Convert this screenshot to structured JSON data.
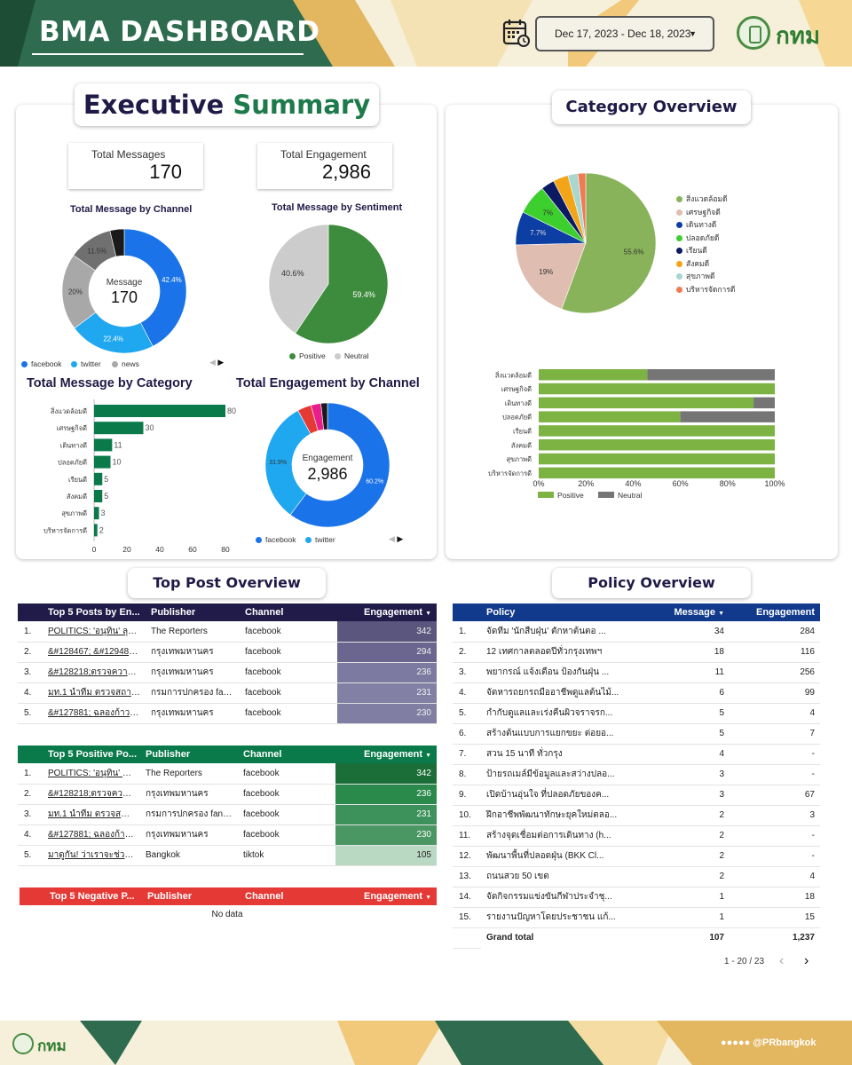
{
  "header": {
    "title": "BMA DASHBOARD",
    "date_range": "Dec 17, 2023 - Dec 18, 2023",
    "logo_text": "กทม"
  },
  "executive": {
    "title_part1": "Executive",
    "title_part2": "Summary",
    "total_messages_label": "Total Messages",
    "total_messages_value": "170",
    "total_engagement_label": "Total Engagement",
    "total_engagement_value": "2,986"
  },
  "channel_donut": {
    "title": "Total Message by Channel",
    "center_label": "Message",
    "center_value": "170",
    "legend": [
      "facebook",
      "twitter",
      "news"
    ]
  },
  "sentiment_pie": {
    "title": "Total Message by Sentiment",
    "legend": [
      "Positive",
      "Neutral"
    ]
  },
  "category_bar": {
    "title": "Total Message by Category"
  },
  "engagement_donut": {
    "title": "Total Engagement by Channel",
    "center_label": "Engagement",
    "center_value": "2,986",
    "legend": [
      "facebook",
      "twitter"
    ]
  },
  "category_overview": {
    "title": "Category Overview",
    "legend": [
      "สิ่งแวดล้อมดี",
      "เศรษฐกิจดี",
      "เดินทางดี",
      "ปลอดภัยดี",
      "เรียนดี",
      "สังคมดี",
      "สุขภาพดี",
      "บริหารจัดการดี"
    ],
    "stack_legend": [
      "Positive",
      "Neutral"
    ]
  },
  "chart_data": [
    {
      "type": "pie",
      "title": "Total Message by Channel",
      "categories": [
        "facebook",
        "twitter",
        "news",
        "other1",
        "other2"
      ],
      "values": [
        42.4,
        22.4,
        20,
        11.5,
        3.7
      ],
      "value_labels": [
        "42.4%",
        "22.4%",
        "20%",
        "11.5%",
        ""
      ],
      "colors": [
        "#1a73e8",
        "#1fa7f0",
        "#a8a8a8",
        "#707070",
        "#1a1a1a"
      ],
      "extra_colors": [
        "#e53935"
      ]
    },
    {
      "type": "pie",
      "title": "Total Message by Sentiment",
      "categories": [
        "Positive",
        "Neutral"
      ],
      "values": [
        59.4,
        40.6
      ],
      "value_labels": [
        "59.4%",
        "40.6%"
      ],
      "colors": [
        "#3d8b3d",
        "#cccccc"
      ]
    },
    {
      "type": "bar",
      "title": "Total Message by Category",
      "categories": [
        "สิ่งแวดล้อมดี",
        "เศรษฐกิจดี",
        "เดินทางดี",
        "ปลอดภัยดี",
        "เรียนดี",
        "สังคมดี",
        "สุขภาพดี",
        "บริหารจัดการดี"
      ],
      "values": [
        80,
        30,
        11,
        10,
        5,
        5,
        3,
        2
      ],
      "xlim": [
        0,
        80
      ],
      "xticks": [
        0,
        20,
        40,
        60,
        80
      ],
      "color": "#0b7a4b"
    },
    {
      "type": "pie",
      "title": "Total Engagement by Channel",
      "categories": [
        "facebook",
        "twitter",
        "other1",
        "other2",
        "other3"
      ],
      "values": [
        60.2,
        31.9,
        3.6,
        2.6,
        1.7
      ],
      "value_labels": [
        "60.2%",
        "31.9%",
        "",
        "",
        ""
      ],
      "colors": [
        "#1a73e8",
        "#1fa7f0",
        "#e53935",
        "#e91e8c",
        "#1a1a1a"
      ]
    },
    {
      "type": "pie",
      "title": "Category Overview",
      "categories": [
        "สิ่งแวดล้อมดี",
        "เศรษฐกิจดี",
        "เดินทางดี",
        "ปลอดภัยดี",
        "เรียนดี",
        "สังคมดี",
        "สุขภาพดี",
        "บริหารจัดการดี"
      ],
      "values": [
        55.6,
        19,
        7.7,
        7,
        3.1,
        3.5,
        2.3,
        1.8
      ],
      "value_labels": [
        "55.6%",
        "19%",
        "7.7%",
        "7%",
        "",
        "",
        "",
        ""
      ],
      "colors": [
        "#88b35a",
        "#dfbdb1",
        "#0d3ea3",
        "#3ccf2e",
        "#0b1a63",
        "#f2a516",
        "#a9d6cf",
        "#f07b52"
      ]
    },
    {
      "type": "bar",
      "stacked": true,
      "title": "Category Overview",
      "categories": [
        "สิ่งแวดล้อมดี",
        "เศรษฐกิจดี",
        "เดินทางดี",
        "ปลอดภัยดี",
        "เรียนดี",
        "สังคมดี",
        "สุขภาพดี",
        "บริหารจัดการดี"
      ],
      "series": [
        {
          "name": "Positive",
          "values": [
            46,
            100,
            91,
            60,
            100,
            100,
            100,
            100
          ],
          "color": "#7cb342"
        },
        {
          "name": "Neutral",
          "values": [
            54,
            0,
            9,
            40,
            0,
            0,
            0,
            0
          ],
          "color": "#757575"
        }
      ],
      "xlim": [
        0,
        100
      ],
      "xticks": [
        "0%",
        "20%",
        "40%",
        "60%",
        "80%",
        "100%"
      ]
    }
  ],
  "top_posts": {
    "title": "Top Post Overview",
    "headers": [
      "Top 5 Posts by En...",
      "Publisher",
      "Channel",
      "Engagement"
    ],
    "rows": [
      {
        "idx": "1.",
        "post": "POLITICS: 'อนุทิน' ลุยตรว...",
        "publisher": "The Reporters",
        "channel": "facebook",
        "engagement": "342"
      },
      {
        "idx": "2.",
        "post": "&#128467; &#129489...",
        "publisher": "กรุงเทพมหานคร",
        "channel": "facebook",
        "engagement": "294"
      },
      {
        "idx": "3.",
        "post": "&#128218;ตรวจความพร้...",
        "publisher": "กรุงเทพมหานคร",
        "channel": "facebook",
        "engagement": "236"
      },
      {
        "idx": "4.",
        "post": "มท.1 นำทีม ตรวจสถานพร...",
        "publisher": "กรมการปกครอง fanpa...",
        "channel": "facebook",
        "engagement": "231"
      },
      {
        "idx": "5.",
        "post": "&#127881; ฉลองก้าวสู่...",
        "publisher": "กรุงเทพมหานคร",
        "channel": "facebook",
        "engagement": "230"
      }
    ]
  },
  "positive_posts": {
    "headers": [
      "Top 5 Positive Po...",
      "Publisher",
      "Channel",
      "Engagement"
    ],
    "rows": [
      {
        "idx": "1.",
        "post": "POLITICS: 'อนุทิน' ลุยตร...",
        "publisher": "The Reporters",
        "channel": "facebook",
        "engagement": "342"
      },
      {
        "idx": "2.",
        "post": "&#128218;ตรวจความ...",
        "publisher": "กรุงเทพมหานคร",
        "channel": "facebook",
        "engagement": "236"
      },
      {
        "idx": "3.",
        "post": "มท.1 นำทีม ตรวจสถานพ...",
        "publisher": "กรมการปกครอง fanpage",
        "channel": "facebook",
        "engagement": "231"
      },
      {
        "idx": "4.",
        "post": "&#127881; ฉลองก้าวสู่...",
        "publisher": "กรุงเทพมหานคร",
        "channel": "facebook",
        "engagement": "230"
      },
      {
        "idx": "5.",
        "post": "มาดูกัน! ว่าเราจะช่วยกันแ...",
        "publisher": "Bangkok",
        "channel": "tiktok",
        "engagement": "105"
      }
    ]
  },
  "negative_posts": {
    "headers": [
      "Top 5 Negative P...",
      "Publisher",
      "Channel",
      "Engagement"
    ],
    "empty_text": "No data"
  },
  "policy": {
    "title": "Policy Overview",
    "headers": [
      "Policy",
      "Message",
      "Engagement"
    ],
    "rows": [
      {
        "idx": "1.",
        "policy": "จัดทีม 'นักสืบฝุ่น' ตักหาต้นตอ ...",
        "message": "34",
        "engagement": "284"
      },
      {
        "idx": "2.",
        "policy": "12 เทศกาลตลอดปีทั่วกรุงเทพฯ",
        "message": "18",
        "engagement": "116"
      },
      {
        "idx": "3.",
        "policy": "พยากรณ์ แจ้งเตือน ป้องกันฝุ่น ...",
        "message": "11",
        "engagement": "256"
      },
      {
        "idx": "4.",
        "policy": "จัดหารถยกรถมืออาชีพดูแลต้นไม้...",
        "message": "6",
        "engagement": "99"
      },
      {
        "idx": "5.",
        "policy": "กำกับดูแลและเร่งคืนผิวจราจรก...",
        "message": "5",
        "engagement": "4"
      },
      {
        "idx": "6.",
        "policy": "สร้างต้นแบบการแยกขยะ ต่อยอ...",
        "message": "5",
        "engagement": "7"
      },
      {
        "idx": "7.",
        "policy": "สวน 15 นาที ทั่วกรุง",
        "message": "4",
        "engagement": "-"
      },
      {
        "idx": "8.",
        "policy": "ป้ายรถเมล์มีข้อมูลและสว่างปลอ...",
        "message": "3",
        "engagement": "-"
      },
      {
        "idx": "9.",
        "policy": "เปิดบ้านอุ่นใจ ที่ปลอดภัยของค...",
        "message": "3",
        "engagement": "67"
      },
      {
        "idx": "10.",
        "policy": "ฝึกอาชีพพัฒนาทักษะยุคใหม่ตลอ...",
        "message": "2",
        "engagement": "3"
      },
      {
        "idx": "11.",
        "policy": "สร้างจุดเชื่อมต่อการเดินทาง (h...",
        "message": "2",
        "engagement": "-"
      },
      {
        "idx": "12.",
        "policy": "พัฒนาพื้นที่ปลอดฝุ่น (BKK Cl...",
        "message": "2",
        "engagement": "-"
      },
      {
        "idx": "13.",
        "policy": "ถนนสวย 50 เขต",
        "message": "2",
        "engagement": "4"
      },
      {
        "idx": "14.",
        "policy": "จัดกิจกรรมแข่งขันกีฬาประจำชุ...",
        "message": "1",
        "engagement": "18"
      },
      {
        "idx": "15.",
        "policy": "รายงานปัญหาโดยประชาชน แก้...",
        "message": "1",
        "engagement": "15"
      }
    ],
    "total_label": "Grand total",
    "total_message": "107",
    "total_engagement": "1,237",
    "pager": "1 - 20 / 23"
  },
  "footer": {
    "logo_text": "กทม",
    "social_handle": "@PRbangkok"
  }
}
